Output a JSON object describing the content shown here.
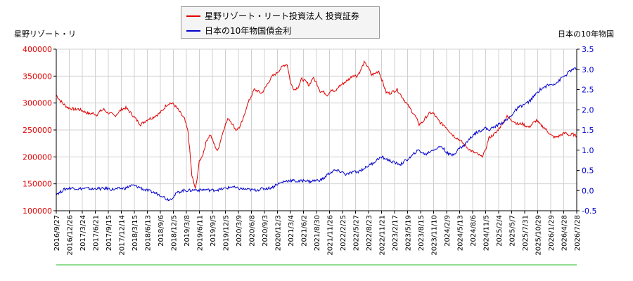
{
  "legend": {
    "items": [
      {
        "label": "星野リゾート・リート投資法人 投資証券",
        "color": "#e00000"
      },
      {
        "label": "日本の10年物国債金利",
        "color": "#0000cc"
      }
    ]
  },
  "axis_titles": {
    "left": "星野リゾート・リ",
    "right": "日本の10年物国"
  },
  "chart_data": {
    "type": "line",
    "x_tick_labels": [
      "2016/9/27",
      "2016/12/26",
      "2017/3/24",
      "2017/6/21",
      "2017/9/15",
      "2017/12/14",
      "2018/3/15",
      "2018/6/13",
      "2018/9/6",
      "2018/12/5",
      "2019/3/8",
      "2019/6/11",
      "2019/9/5",
      "2019/12/5",
      "2020/3/9",
      "2020/6/8",
      "2020/9/3",
      "2020/12/3",
      "2021/3/4",
      "2021/6/2",
      "2021/8/30",
      "2021/11/26",
      "2022/2/25",
      "2022/5/27",
      "2022/8/23",
      "2022/11/21",
      "2023/2/17",
      "2023/5/19",
      "2023/8/15",
      "2023/11/10",
      "2024/2/9",
      "2024/5/13",
      "2024/8/6",
      "2024/11/5",
      "2025/2/4",
      "2025/5/7",
      "2025/7/31",
      "2025/10/29",
      "2026/1/29",
      "2026/4/28",
      "2026/7/28"
    ],
    "y_left": {
      "min": 100000,
      "max": 400000,
      "ticks": [
        "100000",
        "150000",
        "200000",
        "250000",
        "300000",
        "350000",
        "400000"
      ],
      "tick_color": "#e00000"
    },
    "y_right": {
      "min": -0.5,
      "max": 3.5,
      "ticks": [
        "-0.5",
        "0.0",
        "0.5",
        "1.0",
        "1.5",
        "2.0",
        "2.5",
        "3.0",
        "3.5"
      ],
      "tick_color": "#0000cc"
    },
    "grid": true,
    "series": [
      {
        "name": "星野リゾート・リート投資法人 投資証券",
        "axis": "left",
        "color": "#e00000",
        "values": [
          315000,
          305000,
          298000,
          292000,
          290000,
          288000,
          289000,
          286000,
          283000,
          280000,
          281000,
          278000,
          285000,
          288000,
          282000,
          280000,
          276000,
          283000,
          289000,
          291000,
          284000,
          276000,
          268000,
          260000,
          265000,
          270000,
          272000,
          276000,
          280000,
          286000,
          296000,
          300000,
          298000,
          290000,
          280000,
          270000,
          245000,
          165000,
          140000,
          190000,
          205000,
          230000,
          242000,
          225000,
          210000,
          235000,
          258000,
          272000,
          262000,
          250000,
          255000,
          270000,
          295000,
          310000,
          325000,
          322000,
          318000,
          328000,
          340000,
          350000,
          355000,
          362000,
          370000,
          372000,
          335000,
          325000,
          330000,
          345000,
          340000,
          333000,
          347000,
          338000,
          322000,
          320000,
          315000,
          325000,
          320000,
          330000,
          335000,
          340000,
          345000,
          352000,
          350000,
          360000,
          375000,
          368000,
          352000,
          355000,
          360000,
          340000,
          320000,
          318000,
          322000,
          325000,
          315000,
          305000,
          295000,
          285000,
          275000,
          260000,
          265000,
          275000,
          282000,
          280000,
          270000,
          262000,
          258000,
          250000,
          242000,
          236000,
          232000,
          225000,
          218000,
          212000,
          208000,
          205000,
          200000,
          210000,
          235000,
          240000,
          245000,
          255000,
          265000,
          275000,
          270000,
          265000,
          260000,
          262000,
          258000,
          255000,
          262000,
          268000,
          260000,
          255000,
          248000,
          240000,
          236000,
          238000,
          242000,
          245000,
          240000,
          242000,
          238000
        ]
      },
      {
        "name": "日本の10年物国債金利",
        "axis": "right",
        "color": "#0000cc",
        "values": [
          -0.08,
          -0.05,
          0.02,
          0.05,
          0.06,
          0.06,
          0.04,
          0.05,
          0.05,
          0.05,
          0.03,
          0.06,
          0.04,
          0.05,
          0.05,
          0.03,
          0.03,
          0.05,
          0.05,
          0.06,
          0.11,
          0.13,
          0.1,
          0.07,
          0.02,
          0.0,
          -0.03,
          -0.06,
          -0.1,
          -0.13,
          -0.21,
          -0.22,
          -0.15,
          -0.05,
          -0.02,
          0.01,
          0.0,
          0.01,
          0.02,
          0.01,
          0.02,
          0.02,
          0.01,
          0.01,
          0.02,
          0.03,
          0.05,
          0.07,
          0.1,
          0.06,
          0.05,
          0.04,
          0.03,
          0.02,
          0.01,
          0.02,
          0.04,
          0.05,
          0.06,
          0.08,
          0.15,
          0.18,
          0.22,
          0.24,
          0.25,
          0.24,
          0.22,
          0.24,
          0.26,
          0.22,
          0.24,
          0.25,
          0.26,
          0.3,
          0.4,
          0.45,
          0.5,
          0.48,
          0.46,
          0.4,
          0.42,
          0.47,
          0.45,
          0.5,
          0.55,
          0.6,
          0.66,
          0.72,
          0.8,
          0.82,
          0.78,
          0.74,
          0.7,
          0.67,
          0.65,
          0.72,
          0.78,
          0.85,
          0.95,
          1.0,
          0.92,
          0.9,
          0.97,
          1.02,
          1.05,
          1.1,
          1.0,
          0.9,
          0.88,
          0.95,
          1.05,
          1.1,
          1.2,
          1.3,
          1.4,
          1.45,
          1.5,
          1.55,
          1.5,
          1.55,
          1.6,
          1.65,
          1.7,
          1.75,
          1.85,
          1.95,
          2.05,
          2.1,
          2.15,
          2.2,
          2.3,
          2.4,
          2.5,
          2.55,
          2.6,
          2.62,
          2.65,
          2.7,
          2.8,
          2.85,
          2.95,
          3.0,
          3.02
        ]
      }
    ]
  }
}
